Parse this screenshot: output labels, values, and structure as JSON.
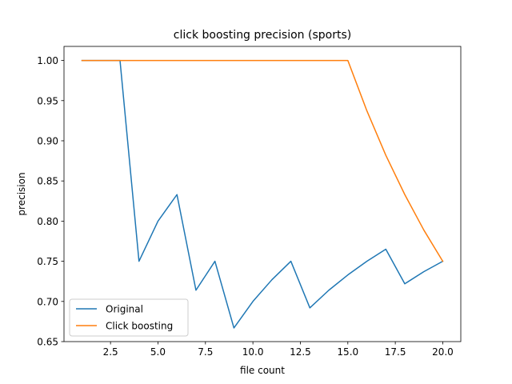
{
  "chart_data": {
    "type": "line",
    "title": "click boosting precision (sports)",
    "xlabel": "file count",
    "ylabel": "precision",
    "xlim": [
      0.05,
      20.95
    ],
    "ylim": [
      0.65,
      1.0175
    ],
    "xticks": [
      2.5,
      5.0,
      7.5,
      10.0,
      12.5,
      15.0,
      17.5,
      20.0
    ],
    "xtick_labels": [
      "2.5",
      "5.0",
      "7.5",
      "10.0",
      "12.5",
      "15.0",
      "17.5",
      "20.0"
    ],
    "yticks": [
      0.65,
      0.7,
      0.75,
      0.8,
      0.85,
      0.9,
      0.95,
      1.0
    ],
    "ytick_labels": [
      "0.65",
      "0.70",
      "0.75",
      "0.80",
      "0.85",
      "0.90",
      "0.95",
      "1.00"
    ],
    "grid": false,
    "legend_position": "lower-left",
    "x": [
      1,
      2,
      3,
      4,
      5,
      6,
      7,
      8,
      9,
      10,
      11,
      12,
      13,
      14,
      15,
      16,
      17,
      18,
      19,
      20
    ],
    "series": [
      {
        "name": "Original",
        "color": "#1f77b4",
        "values": [
          1.0,
          1.0,
          1.0,
          0.75,
          0.8,
          0.833,
          0.714,
          0.75,
          0.667,
          0.7,
          0.727,
          0.75,
          0.692,
          0.714,
          0.733,
          0.75,
          0.765,
          0.722,
          0.737,
          0.75
        ]
      },
      {
        "name": "Click boosting",
        "color": "#ff7f0e",
        "values": [
          1.0,
          1.0,
          1.0,
          1.0,
          1.0,
          1.0,
          1.0,
          1.0,
          1.0,
          1.0,
          1.0,
          1.0,
          1.0,
          1.0,
          1.0,
          0.9375,
          0.882,
          0.833,
          0.789,
          0.75
        ]
      }
    ]
  }
}
